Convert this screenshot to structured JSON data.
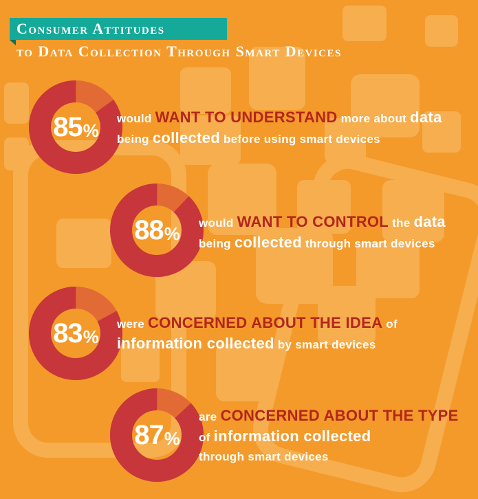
{
  "title": {
    "line1": "Consumer Attitudes",
    "line2": "to Data Collection Through Smart Devices"
  },
  "colors": {
    "background": "#f39a2b",
    "banner": "#15a99a",
    "ring_filled": "#c6363a",
    "ring_remainder": "#e26a35",
    "emphasis": "#b3261e",
    "text": "#ffffff"
  },
  "chart_data": {
    "type": "pie",
    "title": "Consumer Attitudes to Data Collection Through Smart Devices",
    "series": [
      {
        "name": "Want to understand",
        "value": 85,
        "display": "85",
        "unit": "%",
        "text": [
          [
            {
              "t": "would ",
              "s": "sm"
            },
            {
              "t": "WANT TO UNDERSTAND",
              "s": "em"
            },
            {
              "t": " more about ",
              "s": "sm"
            },
            {
              "t": "data",
              "s": "md"
            }
          ],
          [
            {
              "t": "being ",
              "s": "sm"
            },
            {
              "t": "collected",
              "s": "md"
            },
            {
              "t": " before using smart devices",
              "s": "sm"
            }
          ]
        ]
      },
      {
        "name": "Want to control",
        "value": 88,
        "display": "88",
        "unit": "%",
        "text": [
          [
            {
              "t": "would ",
              "s": "sm"
            },
            {
              "t": "WANT TO CONTROL",
              "s": "em"
            },
            {
              "t": " the ",
              "s": "sm"
            },
            {
              "t": "data",
              "s": "md"
            }
          ],
          [
            {
              "t": "being ",
              "s": "sm"
            },
            {
              "t": "collected",
              "s": "md"
            },
            {
              "t": " through smart devices",
              "s": "sm"
            }
          ]
        ]
      },
      {
        "name": "Concerned about the idea",
        "value": 83,
        "display": "83",
        "unit": "%",
        "text": [
          [
            {
              "t": "were ",
              "s": "sm"
            },
            {
              "t": "CONCERNED ABOUT THE IDEA",
              "s": "em"
            },
            {
              "t": " of",
              "s": "sm"
            }
          ],
          [
            {
              "t": "information collected",
              "s": "md"
            },
            {
              "t": " by smart devices",
              "s": "sm"
            }
          ]
        ]
      },
      {
        "name": "Concerned about the type",
        "value": 87,
        "display": "87",
        "unit": "%",
        "text": [
          [
            {
              "t": "are ",
              "s": "sm"
            },
            {
              "t": "CONCERNED ABOUT THE TYPE",
              "s": "em"
            }
          ],
          [
            {
              "t": "of ",
              "s": "sm"
            },
            {
              "t": "information collected",
              "s": "md"
            }
          ],
          [
            {
              "t": "through smart devices",
              "s": "sm"
            }
          ]
        ]
      }
    ]
  }
}
